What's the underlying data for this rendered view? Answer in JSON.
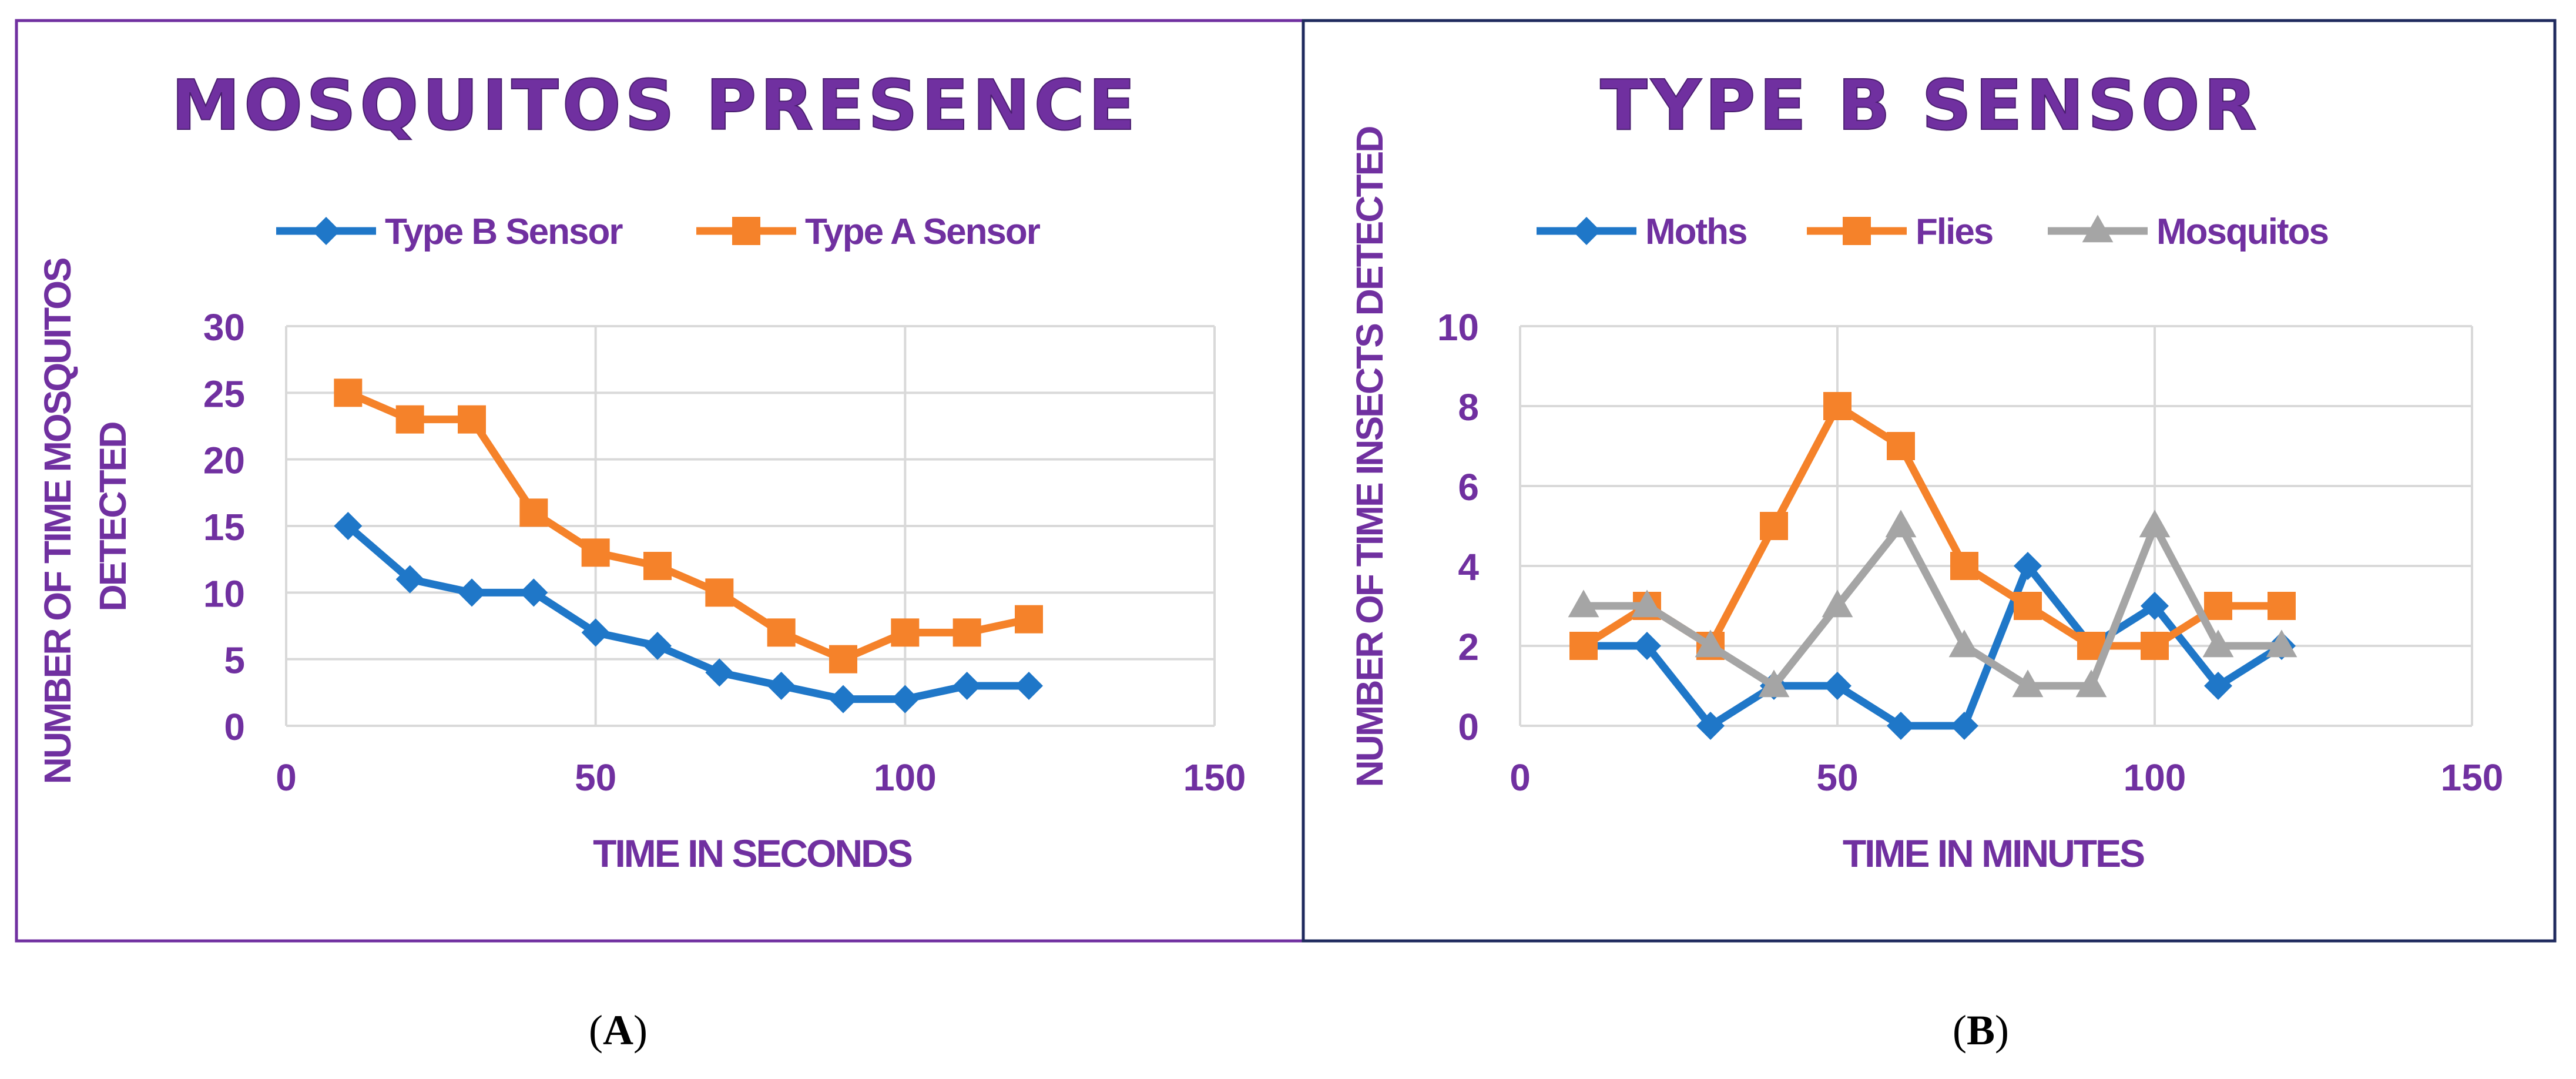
{
  "colors": {
    "text_purple": "#7030A0",
    "panel_a_border": "#7030A0",
    "panel_b_border": "#1F2A5E",
    "grid": "#D9D9D9",
    "series_blue": "#1F77C8",
    "series_orange": "#F5822A",
    "series_gray": "#A5A5A5"
  },
  "captions": [
    {
      "open": "(",
      "letter": "A",
      "close": ")"
    },
    {
      "open": "(",
      "letter": "B",
      "close": ")"
    }
  ],
  "chart_data": [
    {
      "type": "line",
      "title": "MOSQUITOS PRESENCE",
      "xlabel": "TIME IN SECONDS",
      "ylabel_lines": [
        "NUMBER OF TIME MOSQUITOS",
        "DETECTED"
      ],
      "xlim": [
        0,
        150
      ],
      "ylim": [
        0,
        30
      ],
      "xticks": [
        0,
        50,
        100,
        150
      ],
      "yticks": [
        0,
        5,
        10,
        15,
        20,
        25,
        30
      ],
      "grid": true,
      "legend_position": "top",
      "series": [
        {
          "name": "Type B Sensor",
          "marker": "diamond",
          "color": "#1F77C8",
          "x": [
            10,
            20,
            30,
            40,
            50,
            60,
            70,
            80,
            90,
            100,
            110,
            120
          ],
          "values": [
            15,
            11,
            10,
            10,
            7,
            6,
            4,
            3,
            2,
            2,
            3,
            3
          ]
        },
        {
          "name": "Type A Sensor",
          "marker": "square",
          "color": "#F5822A",
          "x": [
            10,
            20,
            30,
            40,
            50,
            60,
            70,
            80,
            90,
            100,
            110,
            120
          ],
          "values": [
            25,
            23,
            23,
            16,
            13,
            12,
            10,
            7,
            5,
            7,
            7,
            8
          ]
        }
      ]
    },
    {
      "type": "line",
      "title": "TYPE B SENSOR",
      "xlabel": "TIME IN MINUTES",
      "ylabel_lines": [
        "NUMBER OF TIME INSECTS DETECTED"
      ],
      "xlim": [
        0,
        150
      ],
      "ylim": [
        0,
        10
      ],
      "xticks": [
        0,
        50,
        100,
        150
      ],
      "yticks": [
        0,
        2,
        4,
        6,
        8,
        10
      ],
      "grid": true,
      "legend_position": "top",
      "series": [
        {
          "name": "Moths",
          "marker": "diamond",
          "color": "#1F77C8",
          "x": [
            10,
            20,
            30,
            40,
            50,
            60,
            70,
            80,
            90,
            100,
            110,
            120
          ],
          "values": [
            2,
            2,
            0,
            1,
            1,
            0,
            0,
            4,
            2,
            3,
            1,
            2
          ]
        },
        {
          "name": "Flies",
          "marker": "square",
          "color": "#F5822A",
          "x": [
            10,
            20,
            30,
            40,
            50,
            60,
            70,
            80,
            90,
            100,
            110,
            120
          ],
          "values": [
            2,
            3,
            2,
            5,
            8,
            7,
            4,
            3,
            2,
            2,
            3,
            3
          ]
        },
        {
          "name": "Mosquitos",
          "marker": "triangle",
          "color": "#A5A5A5",
          "x": [
            10,
            20,
            30,
            40,
            50,
            60,
            70,
            80,
            90,
            100,
            110,
            120
          ],
          "values": [
            3,
            3,
            2,
            1,
            3,
            5,
            2,
            1,
            1,
            5,
            2,
            2
          ]
        }
      ]
    }
  ]
}
